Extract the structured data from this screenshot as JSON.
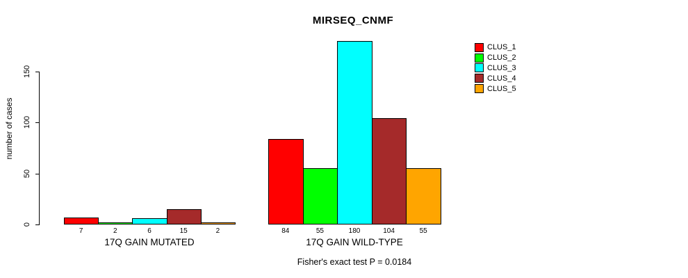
{
  "chart_data": {
    "type": "bar",
    "title": "MIRSEQ_CNMF",
    "ylabel": "number of cases",
    "xlabel": "",
    "categories": [
      "17Q GAIN MUTATED",
      "17Q GAIN WILD-TYPE"
    ],
    "series": [
      {
        "name": "CLUS_1",
        "color": "#FF0000",
        "values": [
          7,
          84
        ]
      },
      {
        "name": "CLUS_2",
        "color": "#00FF00",
        "values": [
          2,
          55
        ]
      },
      {
        "name": "CLUS_3",
        "color": "#00FFFF",
        "values": [
          6,
          180
        ]
      },
      {
        "name": "CLUS_4",
        "color": "#A52A2A",
        "values": [
          15,
          104
        ]
      },
      {
        "name": "CLUS_5",
        "color": "#FFA500",
        "values": [
          2,
          55
        ]
      }
    ],
    "bar_value_labels": [
      [
        7,
        2,
        6,
        15,
        2
      ],
      [
        84,
        55,
        180,
        104,
        55
      ]
    ],
    "yticks": [
      0,
      50,
      100,
      150
    ],
    "ylim": [
      0,
      180
    ],
    "grid": false,
    "legend_position": "right-outside",
    "annotation": "Fisher's exact test P = 0.0184"
  }
}
